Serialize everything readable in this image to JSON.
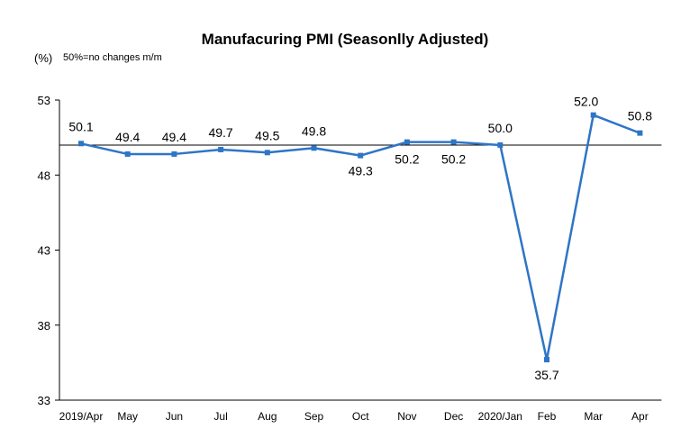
{
  "chart_data": {
    "type": "line",
    "title": "Manufacuring PMI (Seasonlly Adjusted)",
    "unit_label": "(%)",
    "note": "50%=no changes  m/m",
    "categories": [
      "2019/Apr",
      "May",
      "Jun",
      "Jul",
      "Aug",
      "Sep",
      "Oct",
      "Nov",
      "Dec",
      "2020/Jan",
      "Feb",
      "Mar",
      "Apr"
    ],
    "series": [
      {
        "values": [
          50.1,
          49.4,
          49.4,
          49.7,
          49.5,
          49.8,
          49.3,
          50.2,
          50.2,
          50.0,
          35.7,
          52.0,
          50.8
        ],
        "labels": [
          "50.1",
          "49.4",
          "49.4",
          "49.7",
          "49.5",
          "49.8",
          "49.3",
          "50.2",
          "50.2",
          "50.0",
          "35.7",
          "52.0",
          "50.8"
        ]
      }
    ],
    "yticks": [
      33,
      38,
      43,
      48,
      53
    ],
    "ylim": [
      33,
      53
    ],
    "reference_line": 50,
    "line_color": "#2e75c6",
    "grid": false
  }
}
